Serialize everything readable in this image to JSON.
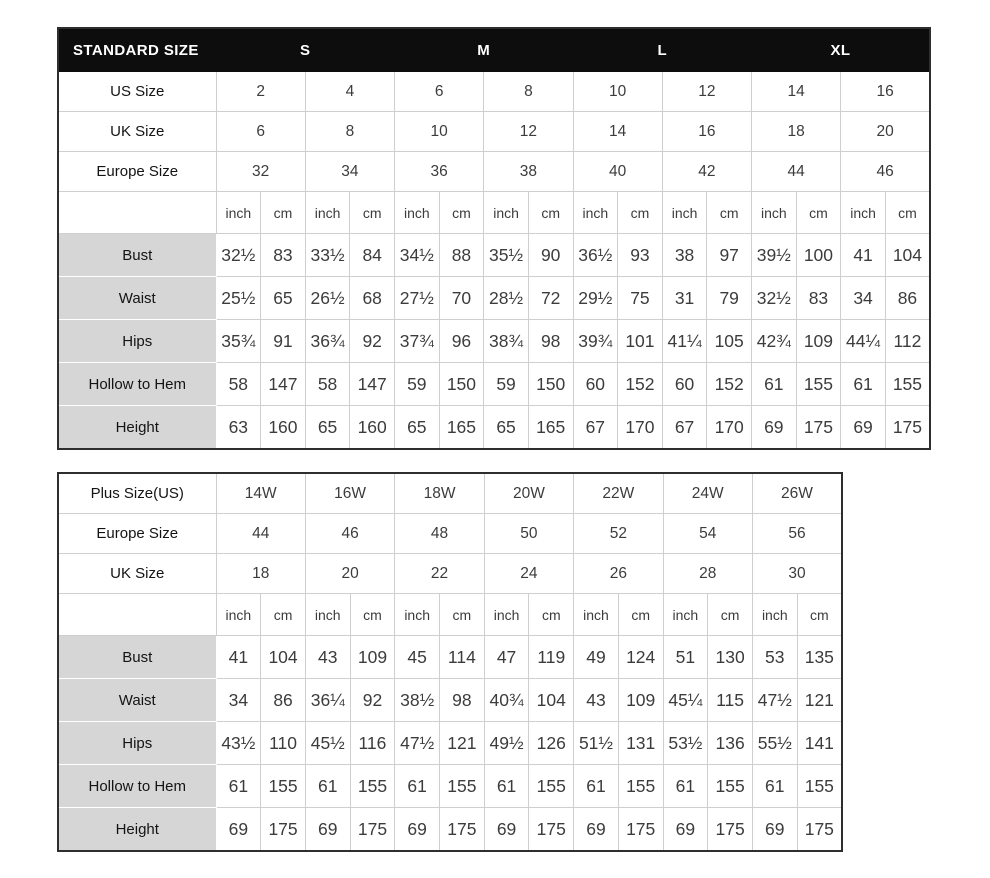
{
  "colors": {
    "header_bar_bg": "#0d0d0d",
    "header_bar_text": "#ffffff",
    "measure_label_bg": "#d6d6d6",
    "grid_line": "#cfcfcf",
    "outer_border": "#2e2e2e",
    "value_text": "#3c3c3c",
    "label_text": "#141414"
  },
  "standard_table": {
    "title": "STANDARD SIZE",
    "size_groups": [
      "S",
      "M",
      "L",
      "XL"
    ],
    "size_rows": [
      {
        "label": "US Size",
        "values": [
          "2",
          "4",
          "6",
          "8",
          "10",
          "12",
          "14",
          "16"
        ]
      },
      {
        "label": "UK Size",
        "values": [
          "6",
          "8",
          "10",
          "12",
          "14",
          "16",
          "18",
          "20"
        ]
      },
      {
        "label": "Europe Size",
        "values": [
          "32",
          "34",
          "36",
          "38",
          "40",
          "42",
          "44",
          "46"
        ]
      }
    ],
    "unit_labels": [
      "inch",
      "cm",
      "inch",
      "cm",
      "inch",
      "cm",
      "inch",
      "cm",
      "inch",
      "cm",
      "inch",
      "cm",
      "inch",
      "cm",
      "inch",
      "cm"
    ],
    "measure_rows": [
      {
        "label": "Bust",
        "values": [
          "32½",
          "83",
          "33½",
          "84",
          "34½",
          "88",
          "35½",
          "90",
          "36½",
          "93",
          "38",
          "97",
          "39½",
          "100",
          "41",
          "104"
        ]
      },
      {
        "label": "Waist",
        "values": [
          "25½",
          "65",
          "26½",
          "68",
          "27½",
          "70",
          "28½",
          "72",
          "29½",
          "75",
          "31",
          "79",
          "32½",
          "83",
          "34",
          "86"
        ]
      },
      {
        "label": "Hips",
        "values": [
          "35¾",
          "91",
          "36¾",
          "92",
          "37¾",
          "96",
          "38¾",
          "98",
          "39¾",
          "101",
          "41¼",
          "105",
          "42¾",
          "109",
          "44¼",
          "112"
        ]
      },
      {
        "label": "Hollow to Hem",
        "values": [
          "58",
          "147",
          "58",
          "147",
          "59",
          "150",
          "59",
          "150",
          "60",
          "152",
          "60",
          "152",
          "61",
          "155",
          "61",
          "155"
        ]
      },
      {
        "label": "Height",
        "values": [
          "63",
          "160",
          "65",
          "160",
          "65",
          "165",
          "65",
          "165",
          "67",
          "170",
          "67",
          "170",
          "69",
          "175",
          "69",
          "175"
        ]
      }
    ]
  },
  "plus_table": {
    "size_rows": [
      {
        "label": "Plus Size(US)",
        "values": [
          "14W",
          "16W",
          "18W",
          "20W",
          "22W",
          "24W",
          "26W"
        ]
      },
      {
        "label": "Europe Size",
        "values": [
          "44",
          "46",
          "48",
          "50",
          "52",
          "54",
          "56"
        ]
      },
      {
        "label": "UK Size",
        "values": [
          "18",
          "20",
          "22",
          "24",
          "26",
          "28",
          "30"
        ]
      }
    ],
    "unit_labels": [
      "inch",
      "cm",
      "inch",
      "cm",
      "inch",
      "cm",
      "inch",
      "cm",
      "inch",
      "cm",
      "inch",
      "cm",
      "inch",
      "cm"
    ],
    "measure_rows": [
      {
        "label": "Bust",
        "values": [
          "41",
          "104",
          "43",
          "109",
          "45",
          "114",
          "47",
          "119",
          "49",
          "124",
          "51",
          "130",
          "53",
          "135"
        ]
      },
      {
        "label": "Waist",
        "values": [
          "34",
          "86",
          "36¼",
          "92",
          "38½",
          "98",
          "40¾",
          "104",
          "43",
          "109",
          "45¼",
          "115",
          "47½",
          "121"
        ]
      },
      {
        "label": "Hips",
        "values": [
          "43½",
          "110",
          "45½",
          "116",
          "47½",
          "121",
          "49½",
          "126",
          "51½",
          "131",
          "53½",
          "136",
          "55½",
          "141"
        ]
      },
      {
        "label": "Hollow to Hem",
        "values": [
          "61",
          "155",
          "61",
          "155",
          "61",
          "155",
          "61",
          "155",
          "61",
          "155",
          "61",
          "155",
          "61",
          "155"
        ]
      },
      {
        "label": "Height",
        "values": [
          "69",
          "175",
          "69",
          "175",
          "69",
          "175",
          "69",
          "175",
          "69",
          "175",
          "69",
          "175",
          "69",
          "175"
        ]
      }
    ]
  }
}
